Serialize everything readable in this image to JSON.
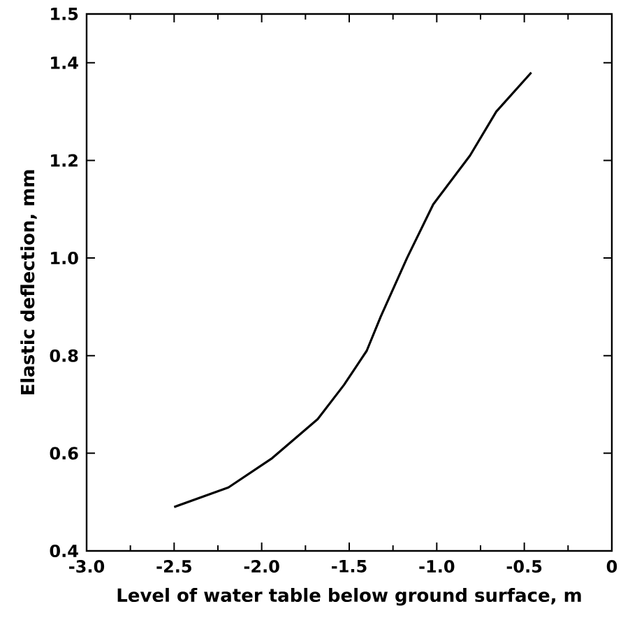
{
  "chart_data": {
    "type": "line",
    "xlabel": "Level of water table below ground surface, m",
    "ylabel": "Elastic deflection, mm",
    "x": [
      -2.5,
      -2.19,
      -1.94,
      -1.68,
      -1.53,
      -1.4,
      -1.32,
      -1.17,
      -1.02,
      -0.81,
      -0.66,
      -0.46
    ],
    "series": [
      {
        "color": "#000000",
        "values": [
          0.49,
          0.53,
          0.59,
          0.67,
          0.74,
          0.81,
          0.88,
          1.0,
          1.11,
          1.21,
          1.3,
          1.38
        ]
      }
    ],
    "xlim": [
      -3.0,
      0
    ],
    "ylim": [
      0.4,
      1.5
    ],
    "xticks": [
      {
        "value": -3.0,
        "label": "-3.0"
      },
      {
        "value": -2.5,
        "label": "-2.5"
      },
      {
        "value": -2.0,
        "label": "-2.0"
      },
      {
        "value": -1.5,
        "label": "-1.5"
      },
      {
        "value": -1.0,
        "label": "-1.0"
      },
      {
        "value": -0.5,
        "label": "-0.5"
      },
      0
    ],
    "yticks": [
      0.4,
      0.6,
      0.8,
      {
        "value": 1.0,
        "label": "1.0"
      },
      1.2,
      1.4,
      1.5
    ],
    "marker": "none",
    "line_style": "solid"
  }
}
